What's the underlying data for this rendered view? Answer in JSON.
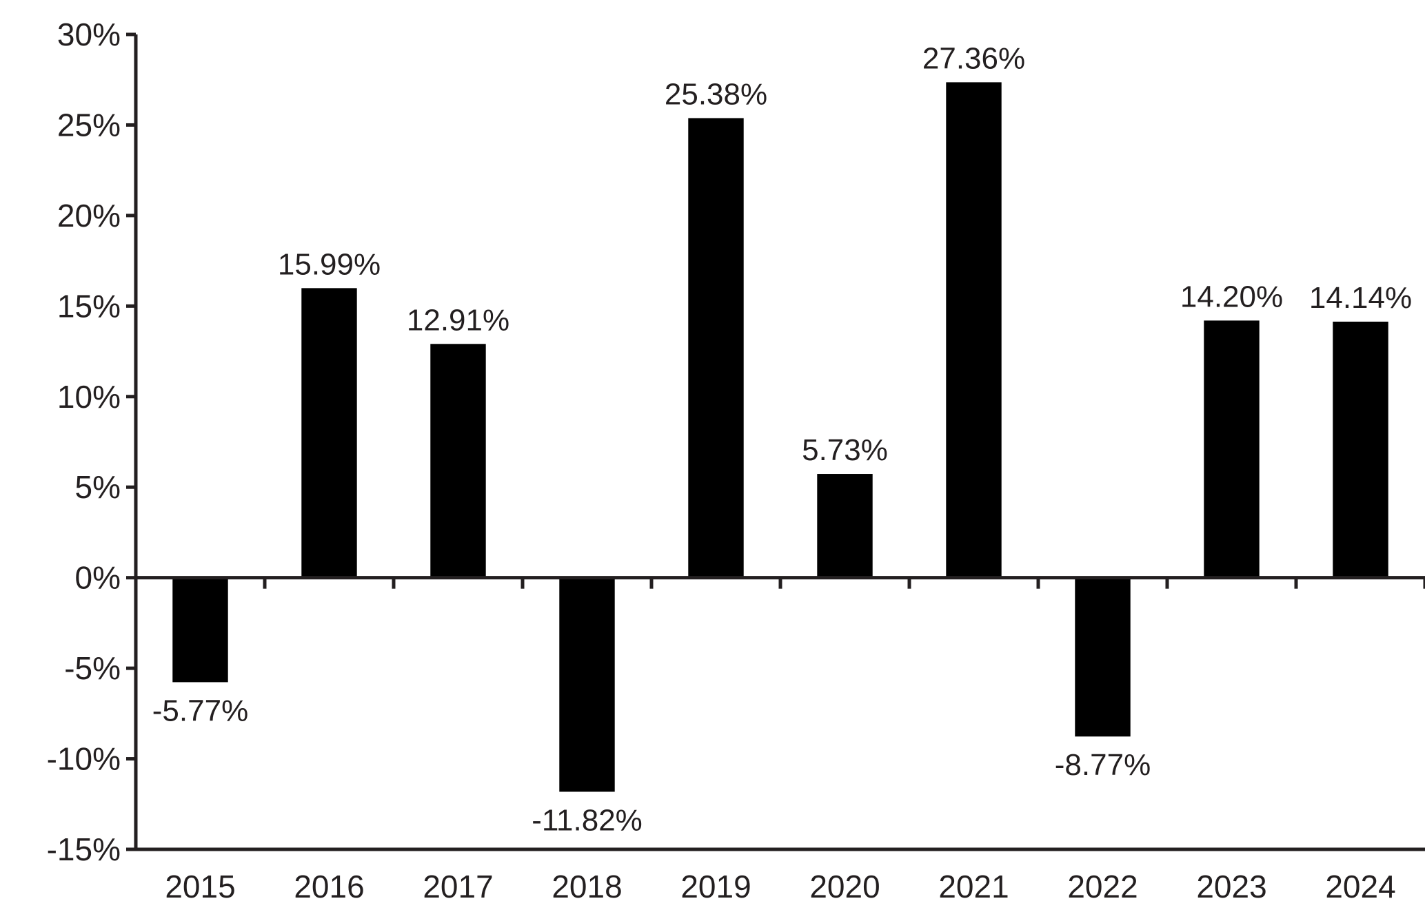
{
  "chart_data": {
    "type": "bar",
    "title": "",
    "xlabel": "",
    "ylabel": "",
    "categories": [
      "2015",
      "2016",
      "2017",
      "2018",
      "2019",
      "2020",
      "2021",
      "2022",
      "2023",
      "2024"
    ],
    "values": [
      -5.77,
      15.99,
      12.91,
      -11.82,
      25.38,
      5.73,
      27.36,
      -8.77,
      14.2,
      14.14
    ],
    "value_labels": [
      "-5.77%",
      "15.99%",
      "12.91%",
      "-11.82%",
      "25.38%",
      "5.73%",
      "27.36%",
      "-8.77%",
      "14.20%",
      "14.14%"
    ],
    "ylim": [
      -15,
      30
    ],
    "yticks": [
      30,
      25,
      20,
      15,
      10,
      5,
      0,
      -5,
      -10,
      -15
    ],
    "ytick_labels": [
      "30%",
      "25%",
      "20%",
      "15%",
      "10%",
      "5%",
      "0%",
      "-5%",
      "-10%",
      "-15%"
    ],
    "grid": false,
    "legend": "none",
    "colors": {
      "bar": "#000000",
      "axis": "#231f20",
      "text": "#231f20"
    }
  }
}
